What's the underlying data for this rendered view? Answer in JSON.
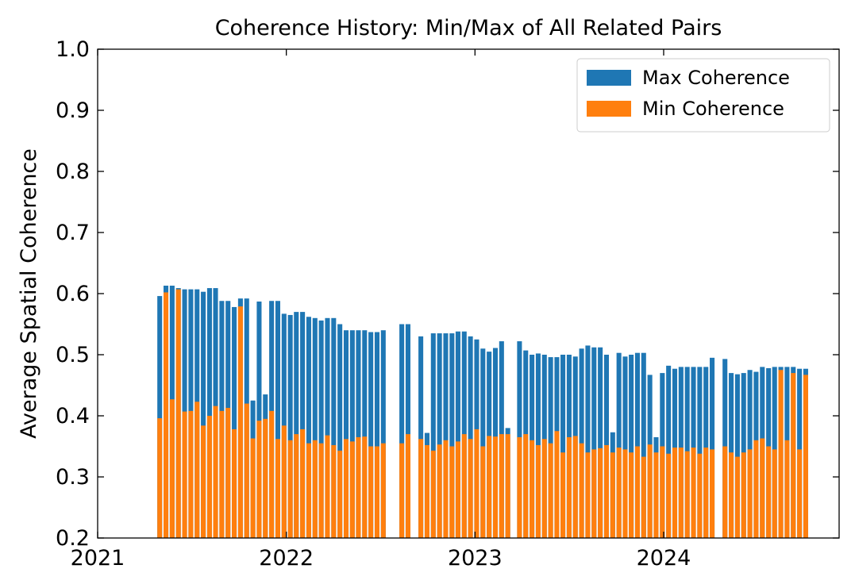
{
  "chart_data": {
    "type": "bar",
    "title": "Coherence History: Min/Max of All Related Pairs",
    "y_label": "Average Spatial Coherence",
    "x": [
      2021.329,
      2021.362,
      2021.395,
      2021.428,
      2021.461,
      2021.494,
      2021.527,
      2021.56,
      2021.593,
      2021.625,
      2021.658,
      2021.691,
      2021.724,
      2021.757,
      2021.79,
      2021.823,
      2021.856,
      2021.889,
      2021.922,
      2021.955,
      2021.988,
      2022.021,
      2022.053,
      2022.086,
      2022.119,
      2022.152,
      2022.185,
      2022.218,
      2022.251,
      2022.284,
      2022.317,
      2022.35,
      2022.382,
      2022.415,
      2022.448,
      2022.481,
      2022.514,
      2022.612,
      2022.645,
      2022.713,
      2022.746,
      2022.779,
      2022.812,
      2022.845,
      2022.878,
      2022.91,
      2022.943,
      2022.976,
      2023.009,
      2023.042,
      2023.075,
      2023.108,
      2023.141,
      2023.174,
      2023.236,
      2023.269,
      2023.302,
      2023.335,
      2023.368,
      2023.401,
      2023.434,
      2023.466,
      2023.499,
      2023.532,
      2023.565,
      2023.598,
      2023.631,
      2023.664,
      2023.697,
      2023.73,
      2023.763,
      2023.796,
      2023.828,
      2023.861,
      2023.894,
      2023.927,
      2023.96,
      2023.993,
      2024.026,
      2024.059,
      2024.092,
      2024.125,
      2024.158,
      2024.191,
      2024.224,
      2024.257,
      2024.325,
      2024.358,
      2024.391,
      2024.424,
      2024.457,
      2024.49,
      2024.523,
      2024.556,
      2024.588,
      2024.621,
      2024.654,
      2024.687,
      2024.72,
      2024.753
    ],
    "series": [
      {
        "name": "Max Coherence",
        "color": "#1f77b4",
        "values": [
          0.596,
          0.613,
          0.613,
          0.609,
          0.607,
          0.607,
          0.607,
          0.603,
          0.609,
          0.609,
          0.588,
          0.588,
          0.578,
          0.592,
          0.592,
          0.425,
          0.587,
          0.435,
          0.588,
          0.588,
          0.567,
          0.565,
          0.57,
          0.57,
          0.562,
          0.56,
          0.556,
          0.56,
          0.56,
          0.55,
          0.54,
          0.54,
          0.54,
          0.54,
          0.537,
          0.537,
          0.54,
          0.55,
          0.55,
          0.53,
          0.372,
          0.535,
          0.535,
          0.535,
          0.535,
          0.538,
          0.538,
          0.53,
          0.525,
          0.51,
          0.505,
          0.511,
          0.522,
          0.38,
          0.522,
          0.507,
          0.5,
          0.502,
          0.5,
          0.496,
          0.496,
          0.5,
          0.5,
          0.497,
          0.51,
          0.515,
          0.512,
          0.512,
          0.5,
          0.373,
          0.503,
          0.497,
          0.5,
          0.503,
          0.503,
          0.467,
          0.365,
          0.47,
          0.482,
          0.477,
          0.48,
          0.48,
          0.48,
          0.48,
          0.48,
          0.495,
          0.493,
          0.47,
          0.468,
          0.47,
          0.475,
          0.472,
          0.48,
          0.478,
          0.48,
          0.48,
          0.48,
          0.48,
          0.477,
          0.477
        ]
      },
      {
        "name": "Min Coherence",
        "color": "#ff7f0e",
        "values": [
          0.396,
          0.602,
          0.427,
          0.607,
          0.407,
          0.408,
          0.423,
          0.384,
          0.4,
          0.416,
          0.408,
          0.413,
          0.378,
          0.579,
          0.42,
          0.363,
          0.392,
          0.395,
          0.408,
          0.362,
          0.384,
          0.36,
          0.37,
          0.378,
          0.355,
          0.36,
          0.355,
          0.368,
          0.352,
          0.343,
          0.362,
          0.358,
          0.365,
          0.366,
          0.35,
          0.35,
          0.355,
          0.355,
          0.37,
          0.362,
          0.352,
          0.343,
          0.353,
          0.36,
          0.35,
          0.358,
          0.37,
          0.362,
          0.378,
          0.35,
          0.367,
          0.366,
          0.37,
          0.37,
          0.365,
          0.37,
          0.36,
          0.352,
          0.362,
          0.355,
          0.375,
          0.34,
          0.365,
          0.367,
          0.355,
          0.34,
          0.345,
          0.347,
          0.352,
          0.34,
          0.348,
          0.345,
          0.34,
          0.35,
          0.333,
          0.353,
          0.34,
          0.35,
          0.338,
          0.348,
          0.348,
          0.342,
          0.348,
          0.338,
          0.348,
          0.345,
          0.35,
          0.34,
          0.333,
          0.34,
          0.345,
          0.36,
          0.363,
          0.35,
          0.345,
          0.475,
          0.36,
          0.47,
          0.345,
          0.467
        ]
      }
    ],
    "xlim": [
      2021.0,
      2024.93
    ],
    "xticks": [
      2021,
      2022,
      2023,
      2024
    ],
    "ylim": [
      0.2,
      1
    ],
    "yticks": [
      0.2,
      0.3,
      0.4,
      0.5,
      0.6,
      0.7,
      0.8,
      0.9,
      {
        "value": 1,
        "label": "1.0"
      }
    ],
    "legend": "upper right",
    "grid": false
  }
}
